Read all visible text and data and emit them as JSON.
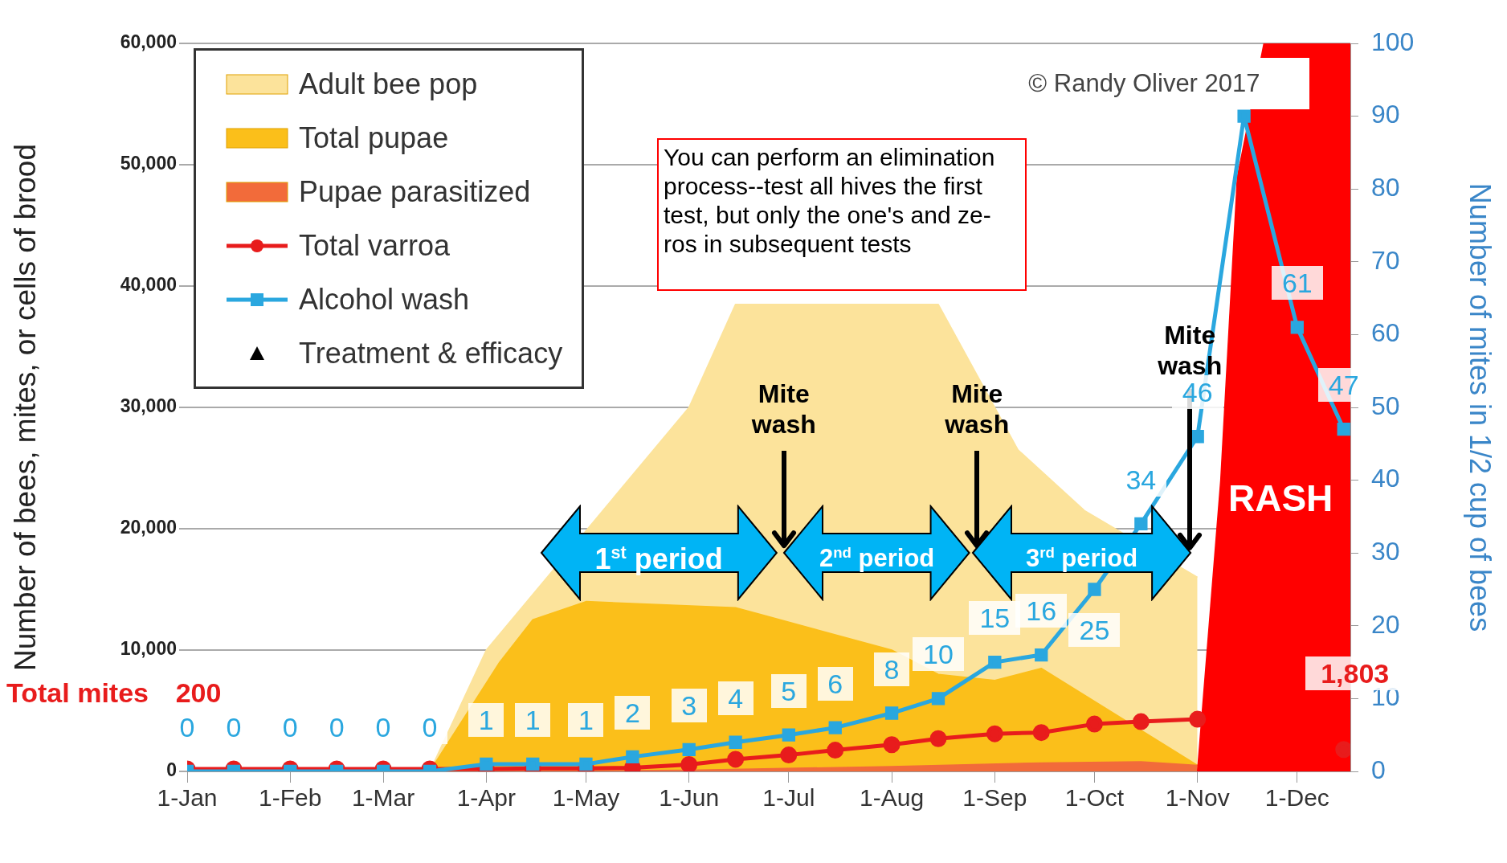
{
  "chart_data": {
    "type": "area",
    "ylabel": "Number of bees, mites, or cells of brood",
    "y2label": "Number of mites in 1/2 cup of bees",
    "x": [
      "--01-01",
      "--01-15",
      "--02-01",
      "--02-15",
      "--03-01",
      "--03-15",
      "--04-01",
      "--04-15",
      "--05-01",
      "--05-15",
      "--06-01",
      "--06-15",
      "--07-01",
      "--07-15",
      "--08-01",
      "--08-15",
      "--09-01",
      "--09-15",
      "--10-01",
      "--10-15",
      "--11-01",
      "--11-15",
      "--12-01",
      "--12-15"
    ],
    "xlim": [
      "--01-01",
      "--12-17"
    ],
    "xticks": [
      {
        "value": "--01-01",
        "label": "1-Jan"
      },
      {
        "value": "--02-01",
        "label": "1-Feb"
      },
      {
        "value": "--03-01",
        "label": "1-Mar"
      },
      {
        "value": "--04-01",
        "label": "1-Apr"
      },
      {
        "value": "--05-01",
        "label": "1-May"
      },
      {
        "value": "--06-01",
        "label": "1-Jun"
      },
      {
        "value": "--07-01",
        "label": "1-Jul"
      },
      {
        "value": "--08-01",
        "label": "1-Aug"
      },
      {
        "value": "--09-01",
        "label": "1-Sep"
      },
      {
        "value": "--10-01",
        "label": "1-Oct"
      },
      {
        "value": "--11-01",
        "label": "1-Nov"
      },
      {
        "value": "--12-01",
        "label": "1-Dec"
      }
    ],
    "ylim": [
      0,
      60000
    ],
    "yticks": [
      0,
      {
        "value": 10000,
        "label": "10,000"
      },
      {
        "value": 20000,
        "label": "20,000"
      },
      {
        "value": 30000,
        "label": "30,000"
      },
      {
        "value": 40000,
        "label": "40,000"
      },
      {
        "value": 50000,
        "label": "50,000"
      },
      {
        "value": 60000,
        "label": "60,000"
      }
    ],
    "y2lim": [
      0,
      100
    ],
    "y2ticks": [
      0,
      10,
      20,
      30,
      40,
      50,
      60,
      70,
      80,
      90,
      100
    ],
    "grid": "y",
    "legend": "top left",
    "series": [
      {
        "name": "Adult bee pop",
        "color": "#fce39b",
        "x": [
          "--03-15",
          "--04-01",
          "--06-01",
          "--06-15",
          "--08-15",
          "--09-08",
          "--09-28",
          "--11-01"
        ],
        "values": [
          0,
          10000,
          30000,
          38500,
          38500,
          26500,
          21500,
          16000
        ]
      },
      {
        "name": "Total pupae",
        "color": "#fbbf1a",
        "x": [
          "--03-15",
          "--04-05",
          "--04-15",
          "--05-01",
          "--06-15",
          "--08-01",
          "--08-15",
          "--09-01",
          "--09-15",
          "--11-01"
        ],
        "values": [
          0,
          9000,
          12500,
          14000,
          13500,
          10000,
          8000,
          7500,
          8500,
          500
        ]
      },
      {
        "name": "Pupae parasitized",
        "color": "#f26b3a",
        "x": [
          "--03-15",
          "--06-01",
          "--08-01",
          "--09-15",
          "--10-15",
          "--11-01"
        ],
        "values": [
          0,
          100,
          400,
          700,
          800,
          500
        ]
      },
      {
        "color": "#ff0000",
        "x": [
          "--11-01",
          "--11-08",
          "--11-13",
          "--11-21",
          "--12-17"
        ],
        "values": [
          0,
          24000,
          49000,
          60000,
          60000
        ]
      },
      {
        "name": "Total varroa",
        "type": "line",
        "color": "#e81c1c",
        "marker": "circle",
        "values": [
          200,
          200,
          200,
          200,
          200,
          200,
          200,
          250,
          250,
          300,
          560,
          1000,
          1350,
          1750,
          2200,
          2700,
          3100,
          3200,
          3900,
          4100,
          4300,
          null,
          null,
          1803
        ],
        "value_labels": [
          "200",
          null,
          null,
          null,
          null,
          null,
          null,
          null,
          null,
          null,
          null,
          null,
          null,
          null,
          null,
          null,
          null,
          null,
          null,
          null,
          null,
          null,
          null,
          "1,803"
        ]
      },
      {
        "name": "Alcohol wash",
        "type": "line",
        "color": "#2aa7df",
        "marker": "square",
        "axis": "y2",
        "values": [
          0,
          0,
          0,
          0,
          0,
          0,
          1,
          1,
          1,
          2,
          3,
          4,
          5,
          6,
          8,
          10,
          15,
          16,
          25,
          34,
          46,
          90,
          61,
          47
        ],
        "value_labels": [
          "0",
          "0",
          "0",
          "0",
          "0",
          "0",
          "1",
          "1",
          "1",
          "2",
          "3",
          "4",
          "5",
          "6",
          "8",
          "10",
          "15",
          "16",
          "25",
          "34",
          "46",
          null,
          "61",
          "47"
        ]
      },
      {
        "name": "Treatment & efficacy",
        "type": "scatter",
        "color": "#000000",
        "marker": "triangle",
        "values": [
          null,
          null,
          null,
          null,
          null,
          null,
          null,
          null,
          null,
          null,
          null,
          null,
          null,
          null,
          null,
          null,
          null,
          null,
          null,
          null,
          null,
          null,
          null,
          null
        ]
      }
    ],
    "annotations": [
      "© Randy Oliver 2017",
      "You can perform an elimination process--test all hives the first test, but only the one's and ze-ros in subsequent tests",
      "Mite wash",
      "Mite wash",
      "Mite wash",
      "1$^{st}$ period",
      "2$^{nd}$ period",
      "3$^{rd}$ period",
      "RASH",
      {
        "text": "Total mites",
        "x": "--01-01",
        "y": 200
      }
    ]
  }
}
